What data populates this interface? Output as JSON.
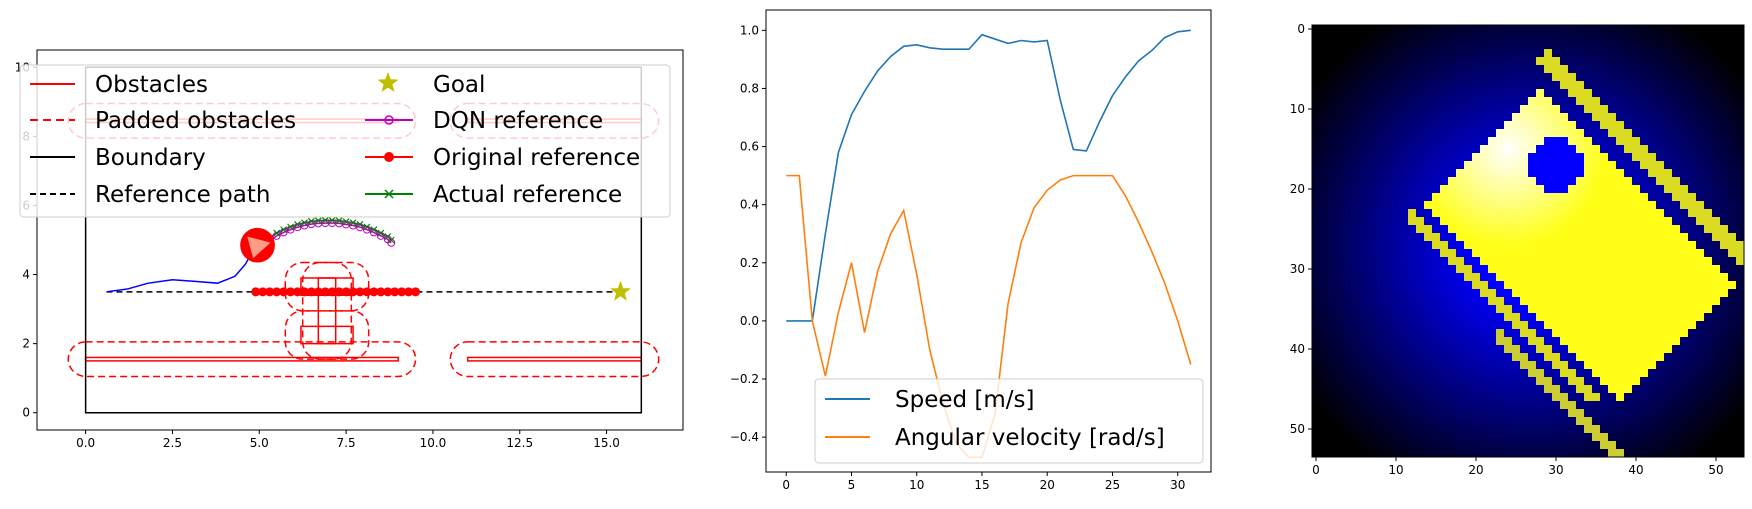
{
  "chart_data": [
    {
      "type": "scatter",
      "xlim": [
        -1.4,
        17.2
      ],
      "ylim": [
        -0.5,
        10.5
      ],
      "xticks": [
        "0.0",
        "2.5",
        "5.0",
        "7.5",
        "10.0",
        "12.5",
        "15.0"
      ],
      "yticks": [
        "0",
        "2",
        "4",
        "6",
        "8",
        "10"
      ],
      "legend": {
        "placement": "top",
        "entries": [
          {
            "label": "Obstacles",
            "color": "#ff0000",
            "style": "solid"
          },
          {
            "label": "Padded obstacles",
            "color": "#ff0000",
            "style": "dashed"
          },
          {
            "label": "Boundary",
            "color": "#000000",
            "style": "solid"
          },
          {
            "label": "Reference path",
            "color": "#000000",
            "style": "dashed"
          },
          {
            "label": "Goal",
            "color": "#bfbf00",
            "style": "star"
          },
          {
            "label": "DQN reference",
            "color": "#bf00bf",
            "style": "open-circle"
          },
          {
            "label": "Original reference",
            "color": "#ff0000",
            "style": "filled-circle"
          },
          {
            "label": "Actual reference",
            "color": "#008000",
            "style": "x"
          }
        ]
      },
      "boundary": [
        [
          0,
          0
        ],
        [
          16,
          0
        ],
        [
          16,
          10
        ],
        [
          0,
          10
        ]
      ],
      "obstacles": [
        {
          "type": "rect",
          "x": 0,
          "y": 1.5,
          "w": 9,
          "h": 0.1
        },
        {
          "type": "rect",
          "x": 11,
          "y": 1.5,
          "w": 5,
          "h": 0.1
        },
        {
          "type": "rect",
          "x": 6.2,
          "y": 2.0,
          "w": 1.5,
          "h": 0.5
        },
        {
          "type": "rect",
          "x": 6.2,
          "y": 3.4,
          "w": 1.5,
          "h": 0.5
        },
        {
          "type": "rect",
          "x": 6.7,
          "y": 2.0,
          "w": 0.5,
          "h": 1.9
        },
        {
          "type": "rect",
          "x": 0,
          "y": 8.4,
          "w": 9,
          "h": 0.1
        },
        {
          "type": "rect",
          "x": 11,
          "y": 8.4,
          "w": 5,
          "h": 0.1
        }
      ],
      "padded_obstacles": [
        {
          "x": -0.5,
          "y": 1.05,
          "w": 10.0,
          "h": 1.0,
          "r": 0.5
        },
        {
          "x": 10.5,
          "y": 1.05,
          "w": 6.0,
          "h": 1.0,
          "r": 0.5
        },
        {
          "x": 5.75,
          "y": 1.55,
          "w": 2.4,
          "h": 1.4,
          "r": 0.5
        },
        {
          "x": 5.75,
          "y": 2.95,
          "w": 2.4,
          "h": 1.4,
          "r": 0.5
        },
        {
          "x": 6.25,
          "y": 1.55,
          "w": 1.4,
          "h": 2.8,
          "r": 0.5
        },
        {
          "x": -0.5,
          "y": 7.95,
          "w": 10.0,
          "h": 1.0,
          "r": 0.5
        },
        {
          "x": 10.5,
          "y": 7.95,
          "w": 6.0,
          "h": 1.0,
          "r": 0.5
        }
      ],
      "reference_path": [
        [
          0.6,
          3.5
        ],
        [
          15.4,
          3.5
        ]
      ],
      "goal": [
        15.4,
        3.5
      ],
      "original_reference": [
        [
          4.9,
          3.5
        ],
        [
          5.1,
          3.5
        ],
        [
          5.3,
          3.5
        ],
        [
          5.5,
          3.5
        ],
        [
          5.7,
          3.5
        ],
        [
          5.9,
          3.5
        ],
        [
          6.1,
          3.5
        ],
        [
          6.3,
          3.5
        ],
        [
          6.5,
          3.5
        ],
        [
          6.7,
          3.5
        ],
        [
          6.9,
          3.5
        ],
        [
          7.1,
          3.5
        ],
        [
          7.3,
          3.5
        ],
        [
          7.5,
          3.5
        ],
        [
          7.7,
          3.5
        ],
        [
          7.9,
          3.5
        ],
        [
          8.1,
          3.5
        ],
        [
          8.3,
          3.5
        ],
        [
          8.5,
          3.5
        ],
        [
          8.7,
          3.5
        ],
        [
          8.9,
          3.5
        ],
        [
          9.1,
          3.5
        ],
        [
          9.3,
          3.5
        ],
        [
          9.5,
          3.5
        ]
      ],
      "dqn_reference": [
        [
          5.3,
          5.05
        ],
        [
          5.5,
          5.2
        ],
        [
          5.7,
          5.3
        ],
        [
          5.9,
          5.38
        ],
        [
          6.1,
          5.45
        ],
        [
          6.3,
          5.5
        ],
        [
          6.5,
          5.54
        ],
        [
          6.7,
          5.56
        ],
        [
          6.9,
          5.57
        ],
        [
          7.1,
          5.57
        ],
        [
          7.3,
          5.56
        ],
        [
          7.5,
          5.53
        ],
        [
          7.7,
          5.5
        ],
        [
          7.9,
          5.45
        ],
        [
          8.1,
          5.38
        ],
        [
          8.3,
          5.3
        ],
        [
          8.5,
          5.2
        ],
        [
          8.7,
          5.1
        ],
        [
          8.8,
          5.0
        ]
      ],
      "actual_reference": [
        [
          5.3,
          5.05
        ],
        [
          5.5,
          5.2
        ],
        [
          5.7,
          5.3
        ],
        [
          5.9,
          5.38
        ],
        [
          6.1,
          5.45
        ],
        [
          6.3,
          5.5
        ],
        [
          6.5,
          5.54
        ],
        [
          6.7,
          5.56
        ],
        [
          6.9,
          5.57
        ],
        [
          7.1,
          5.57
        ],
        [
          7.3,
          5.56
        ],
        [
          7.5,
          5.53
        ],
        [
          7.7,
          5.5
        ],
        [
          7.9,
          5.45
        ],
        [
          8.1,
          5.38
        ],
        [
          8.3,
          5.3
        ],
        [
          8.5,
          5.2
        ],
        [
          8.7,
          5.1
        ],
        [
          8.8,
          5.0
        ]
      ],
      "trajectory": [
        [
          0.6,
          3.5
        ],
        [
          1.2,
          3.58
        ],
        [
          1.8,
          3.75
        ],
        [
          2.5,
          3.85
        ],
        [
          3.2,
          3.8
        ],
        [
          3.8,
          3.75
        ],
        [
          4.3,
          3.95
        ],
        [
          4.6,
          4.3
        ],
        [
          4.85,
          4.75
        ]
      ],
      "vehicle": {
        "x": 4.95,
        "y": 4.85,
        "r": 0.5
      }
    },
    {
      "type": "line",
      "xlim": [
        -1.55,
        32.55
      ],
      "ylim": [
        -0.52,
        1.07
      ],
      "xticks": [
        "0",
        "5",
        "10",
        "15",
        "20",
        "25",
        "30"
      ],
      "yticks": [
        "−0.4",
        "−0.2",
        "0.0",
        "0.2",
        "0.4",
        "0.6",
        "0.8",
        "1.0"
      ],
      "x": [
        0,
        1,
        2,
        3,
        4,
        5,
        6,
        7,
        8,
        9,
        10,
        11,
        12,
        13,
        14,
        15,
        16,
        17,
        18,
        19,
        20,
        21,
        22,
        23,
        24,
        25,
        26,
        27,
        28,
        29,
        30,
        31
      ],
      "series": [
        {
          "name": "Speed [m/s]",
          "color": "#1f77b4",
          "values": [
            0.0,
            0.0,
            0.0,
            0.3,
            0.58,
            0.71,
            0.79,
            0.86,
            0.91,
            0.945,
            0.95,
            0.94,
            0.935,
            0.935,
            0.935,
            0.985,
            0.97,
            0.955,
            0.965,
            0.96,
            0.965,
            0.76,
            0.59,
            0.585,
            0.685,
            0.775,
            0.84,
            0.895,
            0.93,
            0.975,
            0.995,
            1.0
          ]
        },
        {
          "name": "Angular velocity [rad/s]",
          "color": "#ff7f0e",
          "values": [
            0.5,
            0.5,
            0.0,
            -0.19,
            0.03,
            0.2,
            -0.04,
            0.17,
            0.3,
            0.38,
            0.16,
            -0.1,
            -0.28,
            -0.42,
            -0.47,
            -0.47,
            -0.32,
            0.06,
            0.27,
            0.39,
            0.45,
            0.485,
            0.5,
            0.5,
            0.5,
            0.5,
            0.43,
            0.34,
            0.24,
            0.13,
            0.0,
            -0.15
          ]
        }
      ],
      "legend": {
        "placement": "lower center"
      }
    },
    {
      "type": "heatmap",
      "xlim": [
        -0.5,
        53.5
      ],
      "ylim": [
        53.5,
        -0.5
      ],
      "xticks": [
        "0",
        "10",
        "20",
        "30",
        "40",
        "50"
      ],
      "yticks": [
        "0",
        "10",
        "20",
        "30",
        "40",
        "50"
      ],
      "colormap": [
        "#000000",
        "#0000ff",
        "#ffff00",
        "#ffffff"
      ]
    }
  ]
}
